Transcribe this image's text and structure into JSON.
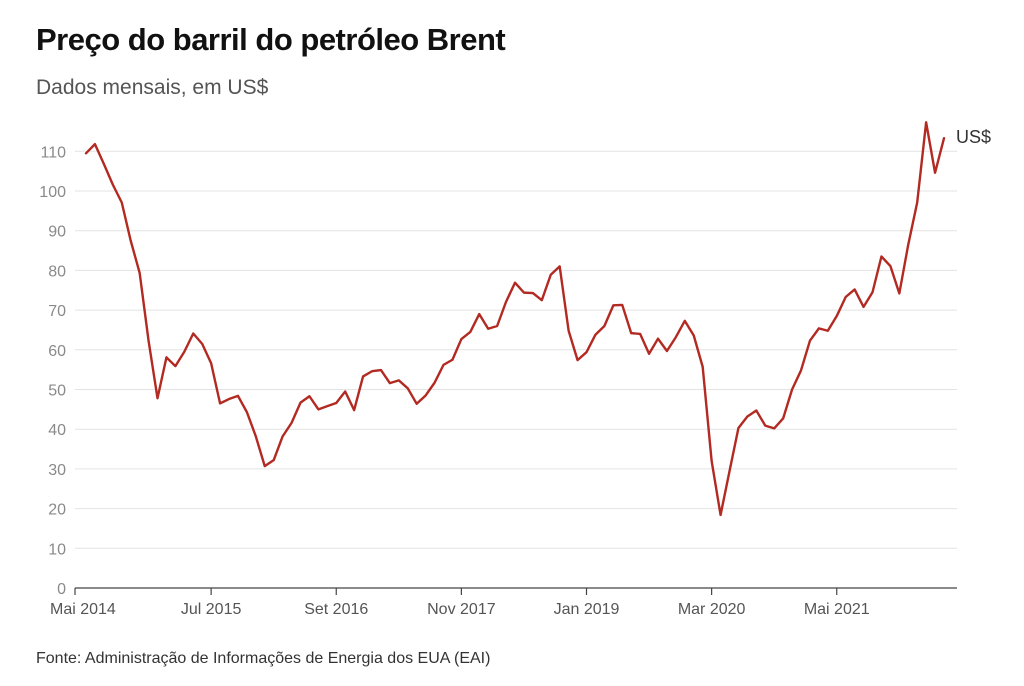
{
  "title": "Preço do barril do petróleo Brent",
  "subtitle": "Dados mensais, em US$",
  "source": "Fonte: Administração de Informações de Energia dos EUA (EAI)",
  "chart_data": {
    "type": "line",
    "x_start": "Mai 2014",
    "xlabel": "",
    "ylabel": "",
    "ylim": [
      0,
      120
    ],
    "yticks": [
      0,
      10,
      20,
      30,
      40,
      50,
      60,
      70,
      80,
      90,
      100,
      110
    ],
    "xtick_labels": [
      "Mai 2014",
      "Jul 2015",
      "Set 2016",
      "Nov 2017",
      "Jan 2019",
      "Mar 2020",
      "Mai 2021"
    ],
    "xtick_index": [
      0,
      14,
      28,
      42,
      56,
      70,
      84
    ],
    "grid": true,
    "line_color": "#b22a22",
    "series": [
      {
        "name": "US$",
        "values": [
          109.5,
          111.8,
          106.8,
          101.6,
          97.1,
          87.5,
          79.4,
          62.3,
          47.8,
          58.1,
          55.9,
          59.5,
          64.1,
          61.5,
          56.6,
          46.5,
          47.6,
          48.4,
          44.3,
          38.2,
          30.7,
          32.2,
          38.2,
          41.6,
          46.7,
          48.3,
          45.0,
          45.8,
          46.6,
          49.5,
          44.8,
          53.3,
          54.6,
          54.9,
          51.6,
          52.3,
          50.3,
          46.4,
          48.5,
          51.7,
          56.2,
          57.5,
          62.7,
          64.5,
          69.0,
          65.3,
          66.0,
          72.1,
          76.9,
          74.4,
          74.3,
          72.5,
          78.9,
          81.0,
          64.8,
          57.4,
          59.4,
          63.8,
          66.0,
          71.2,
          71.3,
          64.2,
          64.0,
          59.0,
          62.8,
          59.7,
          63.2,
          67.3,
          63.6,
          55.7,
          32.0,
          18.4,
          29.4,
          40.3,
          43.2,
          44.7,
          40.9,
          40.2,
          42.7,
          50.0,
          54.8,
          62.3,
          65.4,
          64.8,
          68.5,
          73.3,
          75.2,
          70.8,
          74.5,
          83.5,
          81.1,
          74.2,
          86.5,
          97.1,
          117.3,
          104.6,
          113.3
        ]
      }
    ]
  }
}
